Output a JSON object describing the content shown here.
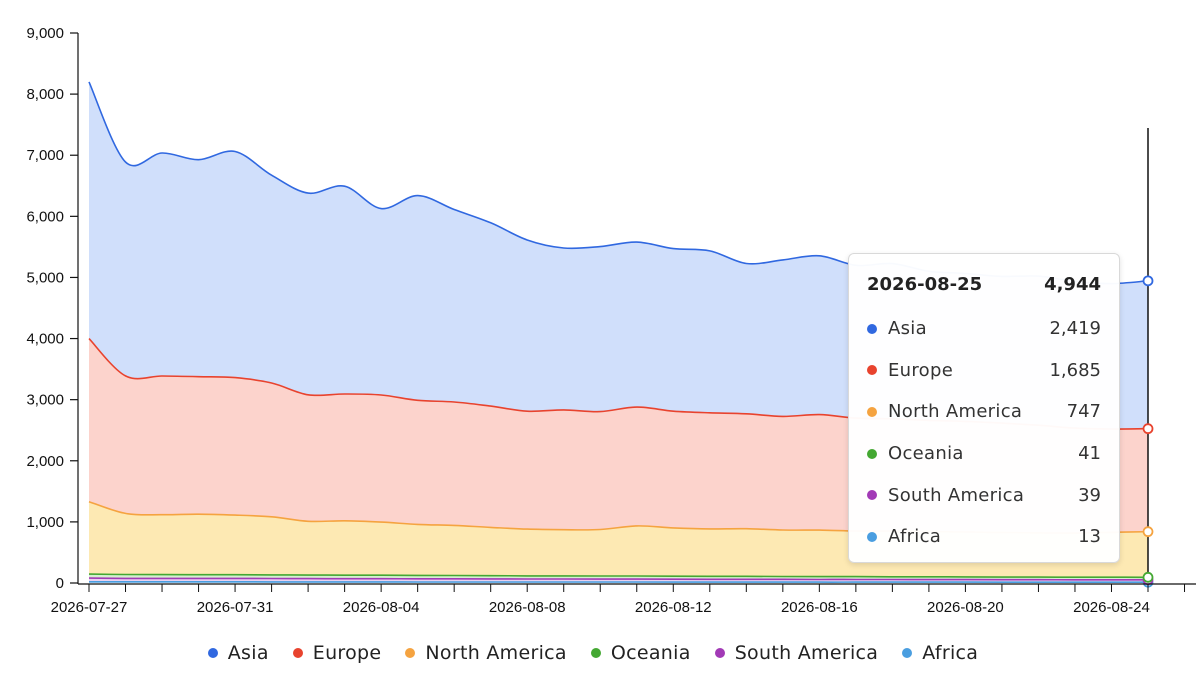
{
  "chart_data": {
    "type": "area",
    "stacked": true,
    "x": [
      "2026-07-27",
      "2026-07-28",
      "2026-07-29",
      "2026-07-30",
      "2026-07-31",
      "2026-08-01",
      "2026-08-02",
      "2026-08-03",
      "2026-08-04",
      "2026-08-05",
      "2026-08-06",
      "2026-08-07",
      "2026-08-08",
      "2026-08-09",
      "2026-08-10",
      "2026-08-11",
      "2026-08-12",
      "2026-08-13",
      "2026-08-14",
      "2026-08-15",
      "2026-08-16",
      "2026-08-17",
      "2026-08-18",
      "2026-08-19",
      "2026-08-20",
      "2026-08-21",
      "2026-08-22",
      "2026-08-23",
      "2026-08-24",
      "2026-08-25"
    ],
    "x_ticks": [
      "2026-07-27",
      "2026-07-31",
      "2026-08-04",
      "2026-08-08",
      "2026-08-12",
      "2026-08-16",
      "2026-08-20",
      "2026-08-24"
    ],
    "y_ticks": [
      "9,000",
      "8,000",
      "7,000",
      "6,000",
      "5,000",
      "4,000",
      "3,000",
      "2,000",
      "1,000",
      "0"
    ],
    "ylim": [
      0,
      9000
    ],
    "legend_position": "bottom",
    "grid": false,
    "series": [
      {
        "name": "Africa",
        "color": "#4a9ee0",
        "values": [
          20,
          19,
          19,
          19,
          19,
          18,
          18,
          18,
          18,
          17,
          17,
          17,
          16,
          16,
          16,
          16,
          15,
          15,
          15,
          15,
          14,
          14,
          14,
          14,
          14,
          13,
          13,
          13,
          13,
          13
        ]
      },
      {
        "name": "South America",
        "color": "#a23ab6",
        "values": [
          60,
          57,
          56,
          56,
          56,
          55,
          54,
          53,
          53,
          52,
          51,
          50,
          49,
          49,
          48,
          48,
          47,
          46,
          46,
          45,
          44,
          44,
          43,
          42,
          42,
          41,
          41,
          40,
          40,
          39
        ]
      },
      {
        "name": "Oceania",
        "color": "#44a832",
        "values": [
          65,
          63,
          62,
          61,
          61,
          60,
          58,
          57,
          56,
          55,
          54,
          53,
          52,
          52,
          51,
          50,
          50,
          49,
          48,
          47,
          47,
          46,
          45,
          45,
          44,
          43,
          43,
          42,
          42,
          41
        ]
      },
      {
        "name": "North America",
        "color": "#f5a340",
        "values": [
          1185,
          1000,
          980,
          990,
          975,
          950,
          880,
          890,
          870,
          835,
          820,
          790,
          765,
          755,
          760,
          820,
          790,
          775,
          780,
          760,
          760,
          745,
          745,
          740,
          735,
          730,
          725,
          720,
          735,
          747
        ]
      },
      {
        "name": "Europe",
        "color": "#e8432e",
        "values": [
          2670,
          2250,
          2270,
          2250,
          2250,
          2190,
          2070,
          2075,
          2080,
          2030,
          2020,
          1985,
          1930,
          1960,
          1930,
          1945,
          1910,
          1900,
          1880,
          1860,
          1890,
          1850,
          1840,
          1820,
          1810,
          1790,
          1760,
          1720,
          1690,
          1685
        ]
      },
      {
        "name": "Asia",
        "color": "#3068e0",
        "values": [
          4200,
          3500,
          3650,
          3550,
          3700,
          3400,
          3300,
          3400,
          3050,
          3350,
          3150,
          3000,
          2800,
          2650,
          2700,
          2700,
          2660,
          2650,
          2460,
          2560,
          2600,
          2500,
          2540,
          2440,
          2420,
          2400,
          2440,
          2400,
          2380,
          2419
        ]
      }
    ]
  },
  "tooltip": {
    "date": "2026-08-25",
    "total": "4,944",
    "rows": [
      {
        "name": "Asia",
        "value": "2,419",
        "color": "#3068e0"
      },
      {
        "name": "Europe",
        "value": "1,685",
        "color": "#e8432e"
      },
      {
        "name": "North America",
        "value": "747",
        "color": "#f5a340"
      },
      {
        "name": "Oceania",
        "value": "41",
        "color": "#44a832"
      },
      {
        "name": "South America",
        "value": "39",
        "color": "#a23ab6"
      },
      {
        "name": "Africa",
        "value": "13",
        "color": "#4a9ee0"
      }
    ]
  },
  "legend": [
    {
      "name": "Asia",
      "color": "#3068e0"
    },
    {
      "name": "Europe",
      "color": "#e8432e"
    },
    {
      "name": "North America",
      "color": "#f5a340"
    },
    {
      "name": "Oceania",
      "color": "#44a832"
    },
    {
      "name": "South America",
      "color": "#a23ab6"
    },
    {
      "name": "Africa",
      "color": "#4a9ee0"
    }
  ]
}
